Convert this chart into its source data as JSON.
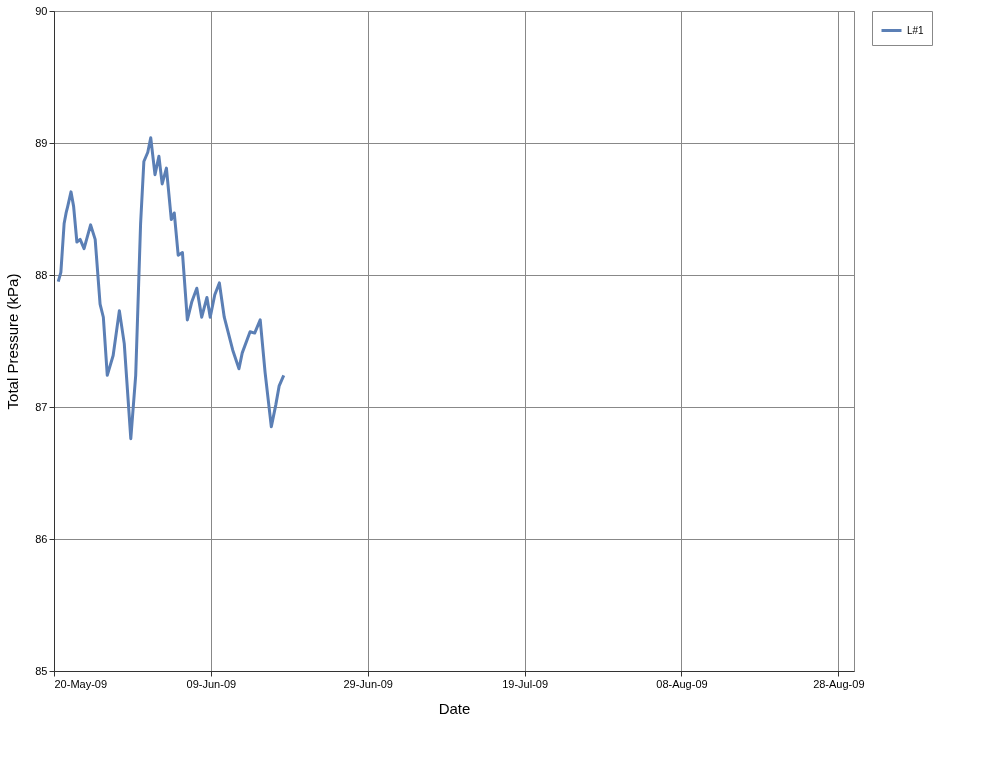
{
  "chart_data": {
    "type": "line",
    "xlabel": "Date",
    "ylabel": "Total Pressure (kPa)",
    "xlim": [
      "2009-05-20",
      "2009-08-30"
    ],
    "xticks": [
      {
        "value": "2009-05-20",
        "label": "20-May-09"
      },
      {
        "value": "2009-06-09",
        "label": "09-Jun-09"
      },
      {
        "value": "2009-06-29",
        "label": "29-Jun-09"
      },
      {
        "value": "2009-07-19",
        "label": "19-Jul-09"
      },
      {
        "value": "2009-08-08",
        "label": "08-Aug-09"
      },
      {
        "value": "2009-08-28",
        "label": "28-Aug-09"
      }
    ],
    "ylim": [
      85,
      90
    ],
    "yticks": [
      85,
      86,
      87,
      88,
      89,
      90
    ],
    "grid": true,
    "legend": "right",
    "marker": "none",
    "line_style": "solid",
    "x": [
      "2009-05-20T13:00",
      "2009-05-20T21:00",
      "2009-05-21T07:00",
      "2009-05-21T13:00",
      "2009-05-21T18:00",
      "2009-05-22T04:00",
      "2009-05-22T12:00",
      "2009-05-22T22:00",
      "2009-05-23T08:00",
      "2009-05-23T20:00",
      "2009-05-24T16:00",
      "2009-05-25T06:00",
      "2009-05-25T21:00",
      "2009-05-26T07:00",
      "2009-05-26T19:00",
      "2009-05-27T13:00",
      "2009-05-28T08:00",
      "2009-05-28T23:00",
      "2009-05-29T19:00",
      "2009-05-30T10:00",
      "2009-05-31T01:00",
      "2009-05-31T11:00",
      "2009-05-31T23:00",
      "2009-06-01T08:00",
      "2009-06-01T21:00",
      "2009-06-02T09:00",
      "2009-06-02T19:00",
      "2009-06-03T08:00",
      "2009-06-03T23:00",
      "2009-06-04T08:00",
      "2009-06-04T20:00",
      "2009-06-05T09:00",
      "2009-06-06T00:00",
      "2009-06-06T14:00",
      "2009-06-07T05:00",
      "2009-06-07T20:00",
      "2009-06-08T12:00",
      "2009-06-08T22:00",
      "2009-06-09T12:00",
      "2009-06-10T02:00",
      "2009-06-10T17:00",
      "2009-06-11T19:00",
      "2009-06-12T14:00",
      "2009-06-13T00:00",
      "2009-06-14T00:00",
      "2009-06-14T14:00",
      "2009-06-15T07:00",
      "2009-06-15T22:00",
      "2009-06-16T17:00",
      "2009-06-17T07:00",
      "2009-06-17T17:00",
      "2009-06-18T07:00"
    ],
    "series": [
      {
        "name": "L#1",
        "color": "#5b7fb5",
        "values": [
          87.95,
          88.02,
          88.39,
          88.47,
          88.52,
          88.63,
          88.52,
          88.25,
          88.27,
          88.2,
          88.38,
          88.27,
          87.78,
          87.68,
          87.24,
          87.39,
          87.73,
          87.48,
          86.76,
          87.24,
          88.39,
          88.86,
          88.93,
          89.04,
          88.76,
          88.9,
          88.69,
          88.81,
          88.42,
          88.47,
          88.15,
          88.17,
          87.66,
          87.8,
          87.9,
          87.68,
          87.83,
          87.68,
          87.85,
          87.94,
          87.68,
          87.43,
          87.29,
          87.41,
          87.57,
          87.56,
          87.66,
          87.26,
          86.85,
          87.02,
          87.16,
          87.24
        ]
      }
    ]
  }
}
